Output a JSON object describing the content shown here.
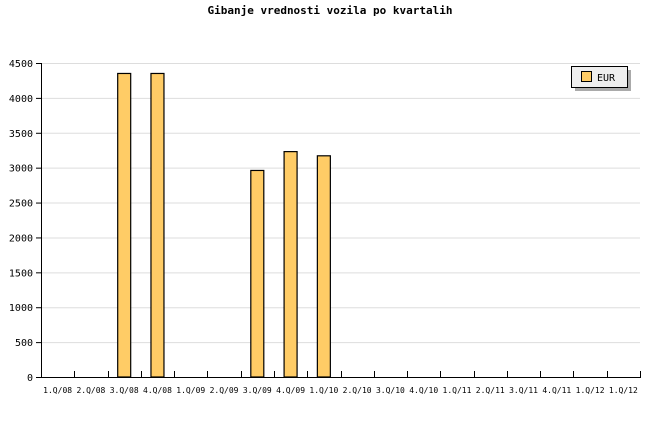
{
  "chart_data": {
    "type": "bar",
    "title": "Gibanje vrednosti vozila po kvartalih",
    "categories": [
      "1.Q/08",
      "2.Q/08",
      "3.Q/08",
      "4.Q/08",
      "1.Q/09",
      "2.Q/09",
      "3.Q/09",
      "4.Q/09",
      "1.Q/10",
      "2.Q/10",
      "3.Q/10",
      "4.Q/10",
      "1.Q/11",
      "2.Q/11",
      "3.Q/11",
      "4.Q/11",
      "1.Q/12",
      "1.Q/12"
    ],
    "series": [
      {
        "name": "EUR",
        "values": [
          0,
          0,
          4350,
          4350,
          0,
          0,
          2960,
          3230,
          3170,
          0,
          0,
          0,
          0,
          0,
          0,
          0,
          0,
          0
        ]
      }
    ],
    "ylim": [
      0,
      4500
    ],
    "yticks": [
      0,
      500,
      1000,
      1500,
      2000,
      2500,
      3000,
      3500,
      4000,
      4500
    ],
    "grid": true,
    "legend": "top-right",
    "colors": {
      "bar": "#ffcc66",
      "grid": "#dddddd"
    }
  }
}
